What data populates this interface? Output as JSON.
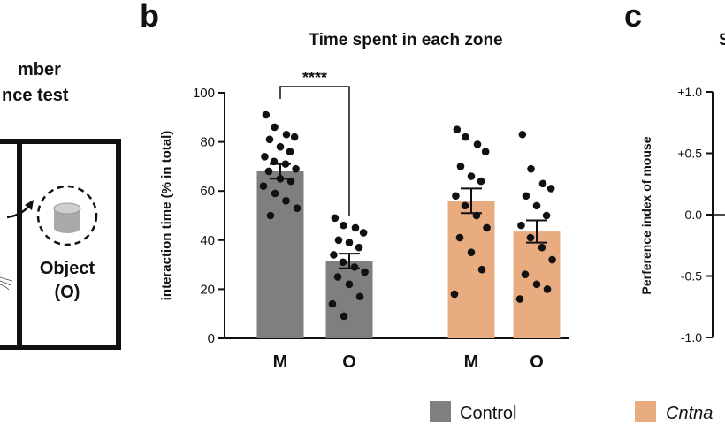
{
  "colors": {
    "control": "#7f7f7f",
    "mutant": "#e8ac80",
    "axis": "#111111",
    "background": "#ffffff"
  },
  "panel_a": {
    "title_line1": "mber",
    "title_line2": "nce test",
    "object_label_line1": "Object",
    "object_label_line2": "(O)",
    "object_icon": "cylinder-object-icon"
  },
  "panel_b": {
    "letter": "b",
    "significance": "****"
  },
  "panel_c": {
    "letter": "c",
    "title_fragment": "S",
    "ylabel": "Perference index of mouse",
    "yticks": [
      "+1.0",
      "+0.5",
      "0.0",
      "-0.5",
      "-1.0"
    ]
  },
  "legend": {
    "control_label": "Control",
    "mutant_label": "Cntna"
  },
  "chart_data": {
    "type": "bar",
    "title": "Time spent in each zone",
    "xlabel": "",
    "ylabel": "interaction time (% in total)",
    "ylim": [
      0,
      100
    ],
    "yticks": [
      0,
      20,
      40,
      60,
      80,
      100
    ],
    "categories": [
      "M",
      "O",
      "M",
      "O"
    ],
    "groups": [
      "Control",
      "Control",
      "Cntna",
      "Cntna"
    ],
    "values": [
      68,
      31.5,
      56,
      43.5
    ],
    "sem": [
      3,
      3,
      5,
      4.5
    ],
    "points": [
      [
        91,
        86,
        83,
        82,
        81,
        78,
        76,
        74,
        72,
        71,
        69,
        68,
        65,
        64,
        62,
        59,
        56,
        53,
        50
      ],
      [
        49,
        46,
        45,
        43,
        40,
        39,
        37,
        34,
        31,
        29,
        27,
        25,
        22,
        17,
        14,
        9
      ],
      [
        85,
        82,
        79,
        76,
        70,
        66,
        64,
        58,
        54,
        50,
        45,
        41,
        35,
        28,
        18
      ],
      [
        83,
        69,
        63,
        61,
        58,
        54,
        50,
        46,
        41,
        37,
        32,
        26,
        22,
        20,
        16
      ]
    ],
    "significance": {
      "between": [
        0,
        1
      ],
      "label": "****"
    },
    "legend": [
      "Control",
      "Cntna"
    ],
    "grid": false
  }
}
